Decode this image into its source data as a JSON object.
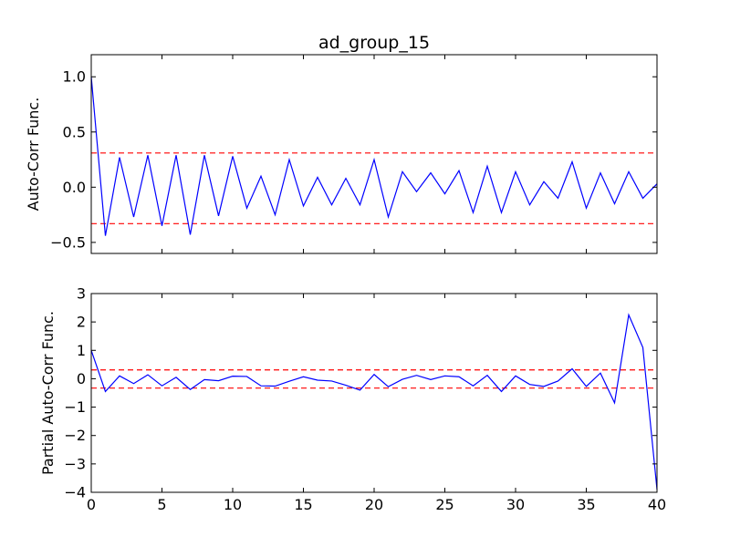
{
  "figure": {
    "title": "ad_group_15"
  },
  "chart_data": [
    {
      "type": "line",
      "title": "ad_group_15",
      "xlabel": "",
      "ylabel": "Auto-Corr Func.",
      "xlim": [
        0,
        40
      ],
      "ylim": [
        -0.6,
        1.2
      ],
      "xticks": [
        0,
        5,
        10,
        15,
        20,
        25,
        30,
        35,
        40
      ],
      "yticks": [
        -0.5,
        0.0,
        0.5,
        1.0
      ],
      "ytick_labels": [
        "−0.5",
        "0.0",
        "0.5",
        "1.0"
      ],
      "show_xtick_labels": false,
      "grid": false,
      "series": [
        {
          "color": "#0000ff",
          "x": [
            0,
            1,
            2,
            3,
            4,
            5,
            6,
            7,
            8,
            9,
            10,
            11,
            12,
            13,
            14,
            15,
            16,
            17,
            18,
            19,
            20,
            21,
            22,
            23,
            24,
            25,
            26,
            27,
            28,
            29,
            30,
            31,
            32,
            33,
            34,
            35,
            36,
            37,
            38,
            39,
            40
          ],
          "y": [
            1.0,
            -0.44,
            0.27,
            -0.27,
            0.29,
            -0.35,
            0.29,
            -0.43,
            0.29,
            -0.26,
            0.28,
            -0.19,
            0.1,
            -0.25,
            0.25,
            -0.17,
            0.09,
            -0.16,
            0.08,
            -0.16,
            0.25,
            -0.27,
            0.14,
            -0.04,
            0.13,
            -0.06,
            0.15,
            -0.23,
            0.19,
            -0.23,
            0.14,
            -0.16,
            0.05,
            -0.1,
            0.23,
            -0.19,
            0.13,
            -0.15,
            0.14,
            -0.1,
            0.03
          ]
        }
      ],
      "reference_lines": [
        {
          "y": 0.31,
          "color": "#ff0000",
          "style": "dashed"
        },
        {
          "y": -0.33,
          "color": "#ff0000",
          "style": "dashed"
        }
      ]
    },
    {
      "type": "line",
      "title": "",
      "xlabel": "",
      "ylabel": "Partial Auto-Corr Func.",
      "xlim": [
        0,
        40
      ],
      "ylim": [
        -4,
        3
      ],
      "xticks": [
        0,
        5,
        10,
        15,
        20,
        25,
        30,
        35,
        40
      ],
      "yticks": [
        -4,
        -3,
        -2,
        -1,
        0,
        1,
        2,
        3
      ],
      "ytick_labels": [
        "−4",
        "−3",
        "−2",
        "−1",
        "0",
        "1",
        "2",
        "3"
      ],
      "show_xtick_labels": true,
      "grid": false,
      "series": [
        {
          "color": "#0000ff",
          "x": [
            0,
            1,
            2,
            3,
            4,
            5,
            6,
            7,
            8,
            9,
            10,
            11,
            12,
            13,
            14,
            15,
            16,
            17,
            18,
            19,
            20,
            21,
            22,
            23,
            24,
            25,
            26,
            27,
            28,
            29,
            30,
            31,
            32,
            33,
            34,
            35,
            36,
            37,
            38,
            39,
            40
          ],
          "y": [
            1.0,
            -0.45,
            0.1,
            -0.17,
            0.14,
            -0.25,
            0.05,
            -0.38,
            -0.03,
            -0.07,
            0.09,
            0.08,
            -0.25,
            -0.26,
            -0.09,
            0.07,
            -0.05,
            -0.08,
            -0.23,
            -0.4,
            0.15,
            -0.28,
            -0.02,
            0.12,
            -0.03,
            0.1,
            0.07,
            -0.25,
            0.12,
            -0.45,
            0.1,
            -0.2,
            -0.27,
            -0.08,
            0.35,
            -0.27,
            0.2,
            -0.85,
            2.25,
            1.1,
            -3.9
          ]
        }
      ],
      "reference_lines": [
        {
          "y": 0.31,
          "color": "#ff0000",
          "style": "dashed"
        },
        {
          "y": -0.33,
          "color": "#ff0000",
          "style": "dashed"
        }
      ]
    }
  ]
}
